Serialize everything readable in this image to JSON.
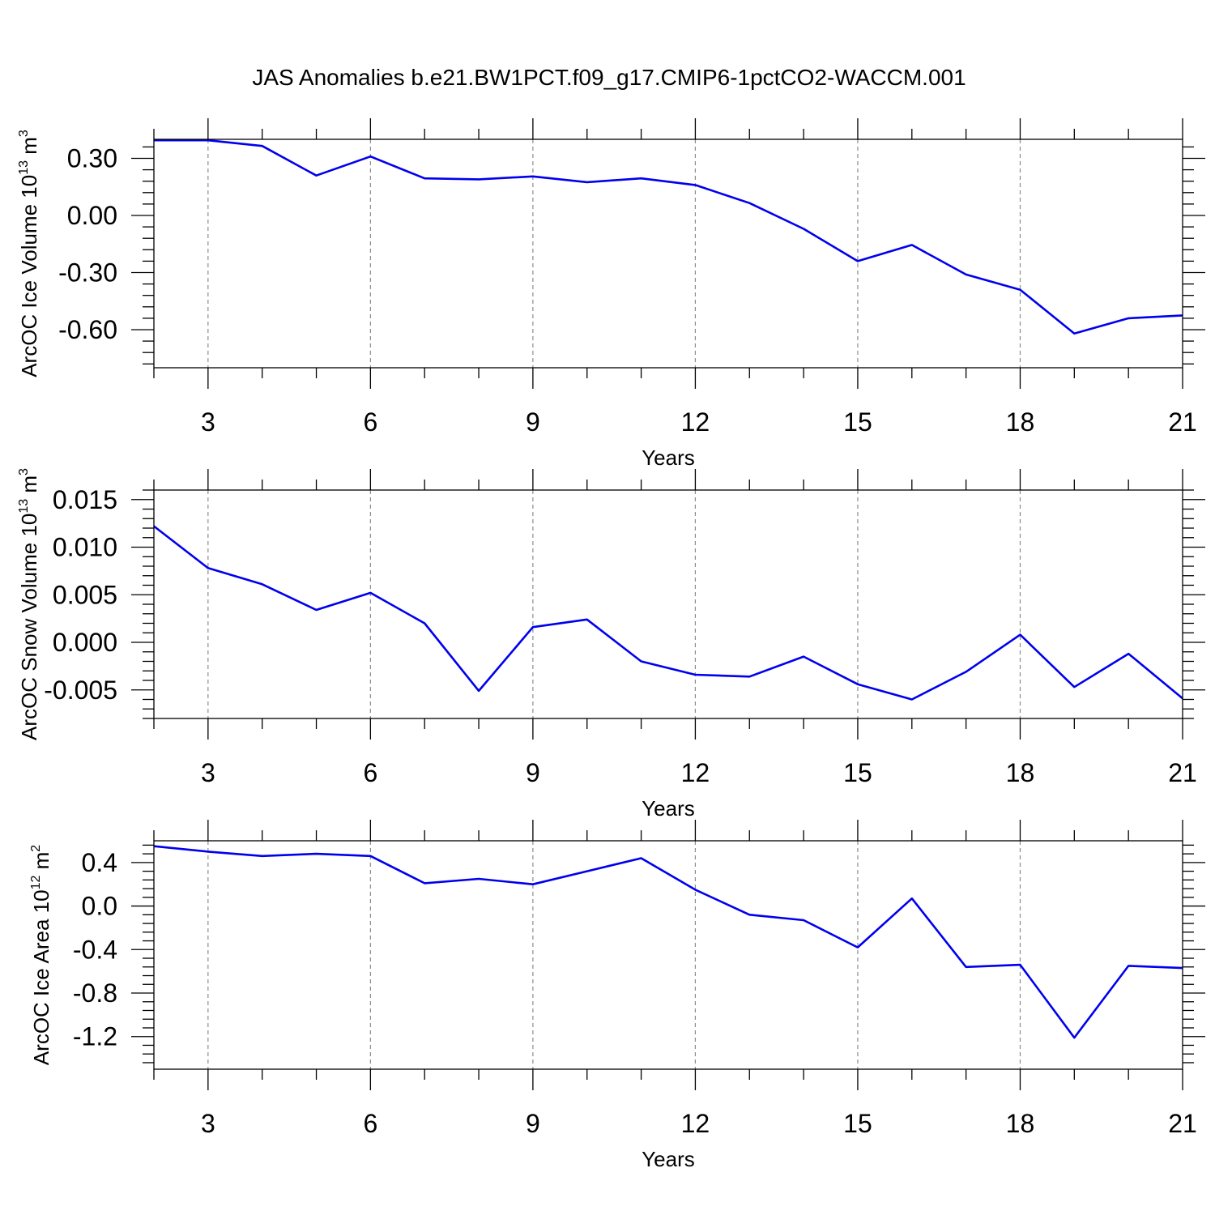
{
  "figure": {
    "title": "JAS Anomalies b.e21.BW1PCT.f09_g17.CMIP6-1pctCO2-WACCM.001",
    "line_color": "#0000ee"
  },
  "chart_data": [
    {
      "type": "line",
      "ylabel": "ArcOC Ice Volume 10",
      "ylabel_sup1": "13",
      "ylabel_mid": " m",
      "ylabel_sup2": "3",
      "xlabel": "Years",
      "xlim": [
        2,
        21
      ],
      "ylim": [
        -0.8,
        0.4
      ],
      "xticks": [
        3,
        6,
        9,
        12,
        15,
        18,
        21
      ],
      "xtick_labels": [
        "3",
        "6",
        "9",
        "12",
        "15",
        "18",
        "21"
      ],
      "yticks": [
        0.3,
        0.0,
        -0.3,
        -0.6
      ],
      "ytick_labels": [
        "0.30",
        "0.00",
        "-0.30",
        "-0.60"
      ],
      "grid": "vertical dashed at major x ticks",
      "x": [
        2,
        3,
        4,
        5,
        6,
        7,
        8,
        9,
        10,
        11,
        12,
        13,
        14,
        15,
        16,
        17,
        18,
        19,
        20,
        21
      ],
      "series": [
        {
          "values": [
            0.395,
            0.395,
            0.365,
            0.21,
            0.31,
            0.195,
            0.19,
            0.205,
            0.175,
            0.195,
            0.16,
            0.065,
            -0.07,
            -0.24,
            -0.155,
            -0.31,
            -0.39,
            -0.62,
            -0.54,
            -0.525
          ]
        }
      ]
    },
    {
      "type": "line",
      "ylabel": "ArcOC Snow Volume 10",
      "ylabel_sup1": "13",
      "ylabel_mid": " m",
      "ylabel_sup2": "3",
      "xlabel": "Years",
      "xlim": [
        2,
        21
      ],
      "ylim": [
        -0.008,
        0.016
      ],
      "xticks": [
        3,
        6,
        9,
        12,
        15,
        18,
        21
      ],
      "xtick_labels": [
        "3",
        "6",
        "9",
        "12",
        "15",
        "18",
        "21"
      ],
      "yticks": [
        0.015,
        0.01,
        0.005,
        0.0,
        -0.005
      ],
      "ytick_labels": [
        "0.015",
        "0.010",
        "0.005",
        "0.000",
        "-0.005"
      ],
      "grid": "vertical dashed at major x ticks",
      "x": [
        2,
        3,
        4,
        5,
        6,
        7,
        8,
        9,
        10,
        11,
        12,
        13,
        14,
        15,
        16,
        17,
        18,
        19,
        20,
        21
      ],
      "series": [
        {
          "values": [
            0.0122,
            0.0078,
            0.0061,
            0.0034,
            0.0052,
            0.002,
            -0.0051,
            0.0016,
            0.0024,
            -0.002,
            -0.0034,
            -0.0036,
            -0.0015,
            -0.0044,
            -0.006,
            -0.0031,
            0.0008,
            -0.0047,
            -0.0012,
            -0.0059
          ]
        }
      ]
    },
    {
      "type": "line",
      "ylabel": "ArcOC Ice Area 10",
      "ylabel_sup1": "12",
      "ylabel_mid": " m",
      "ylabel_sup2": "2",
      "xlabel": "Years",
      "xlim": [
        2,
        21
      ],
      "ylim": [
        -1.5,
        0.6
      ],
      "xticks": [
        3,
        6,
        9,
        12,
        15,
        18,
        21
      ],
      "xtick_labels": [
        "3",
        "6",
        "9",
        "12",
        "15",
        "18",
        "21"
      ],
      "yticks": [
        0.4,
        0.0,
        -0.4,
        -0.8,
        -1.2
      ],
      "ytick_labels": [
        "0.4",
        "0.0",
        "-0.4",
        "-0.8",
        "-1.2"
      ],
      "grid": "vertical dashed at major x ticks",
      "x": [
        2,
        3,
        4,
        5,
        6,
        7,
        8,
        9,
        10,
        11,
        12,
        13,
        14,
        15,
        16,
        17,
        18,
        19,
        20,
        21
      ],
      "series": [
        {
          "values": [
            0.55,
            0.5,
            0.46,
            0.48,
            0.46,
            0.21,
            0.25,
            0.2,
            0.32,
            0.44,
            0.15,
            -0.08,
            -0.13,
            -0.38,
            0.07,
            -0.56,
            -0.54,
            -1.21,
            -0.55,
            -0.57
          ]
        }
      ]
    }
  ]
}
